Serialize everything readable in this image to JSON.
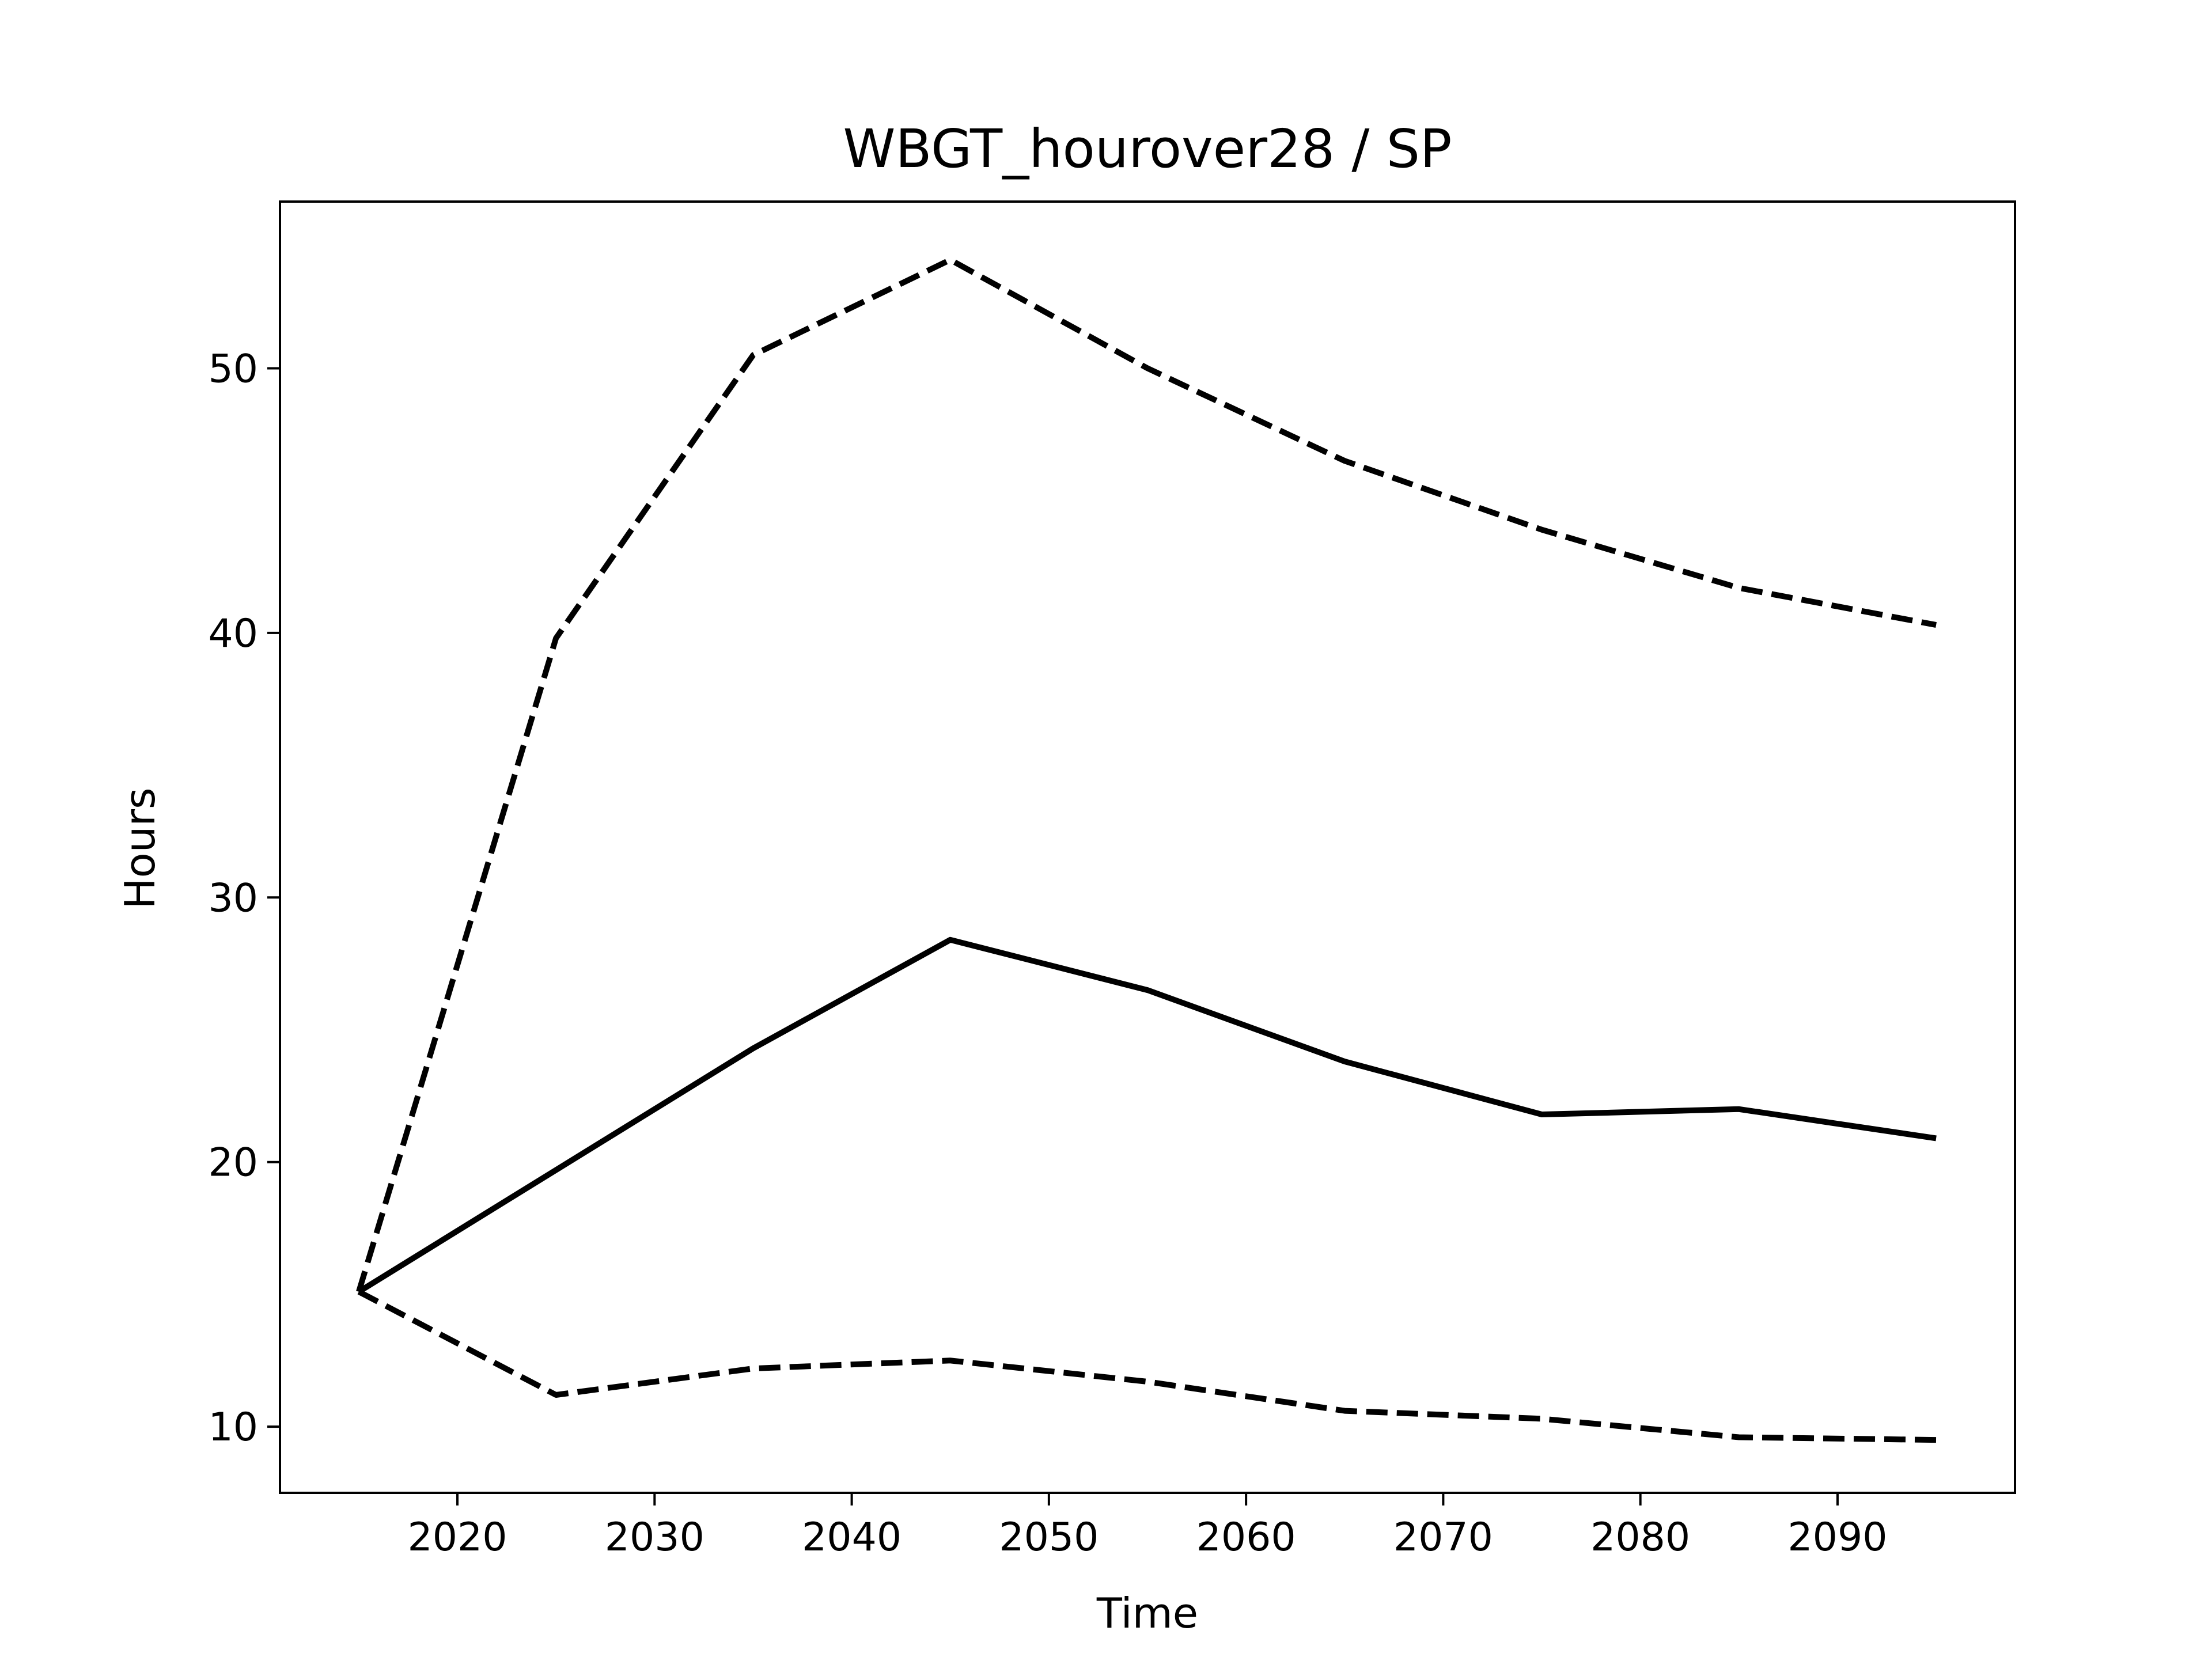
{
  "chart_data": {
    "type": "line",
    "title": "WBGT_hourover28 / SP",
    "xlabel": "Time",
    "ylabel": "Hours",
    "x": [
      2015,
      2025,
      2035,
      2045,
      2055,
      2065,
      2075,
      2085,
      2095
    ],
    "series": [
      {
        "values": [
          15.1,
          39.8,
          50.5,
          54.1,
          50.0,
          46.5,
          43.9,
          41.7,
          40.3
        ],
        "line_style": "dashed"
      },
      {
        "values": [
          15.1,
          19.7,
          24.3,
          28.4,
          26.5,
          23.8,
          21.8,
          22.0,
          20.9
        ],
        "line_style": "solid"
      },
      {
        "values": [
          15.1,
          11.2,
          12.2,
          12.5,
          11.7,
          10.6,
          10.3,
          9.6,
          9.5
        ],
        "line_style": "dashed"
      }
    ],
    "xlim": [
      2011,
      2099
    ],
    "ylim": [
      7.5,
      56.3
    ],
    "xticks": [
      "2020",
      "2030",
      "2040",
      "2050",
      "2060",
      "2070",
      "2080",
      "2090"
    ],
    "yticks": [
      "10",
      "20",
      "30",
      "40",
      "50"
    ],
    "grid": false,
    "legend": false,
    "line_color": "#000000"
  }
}
